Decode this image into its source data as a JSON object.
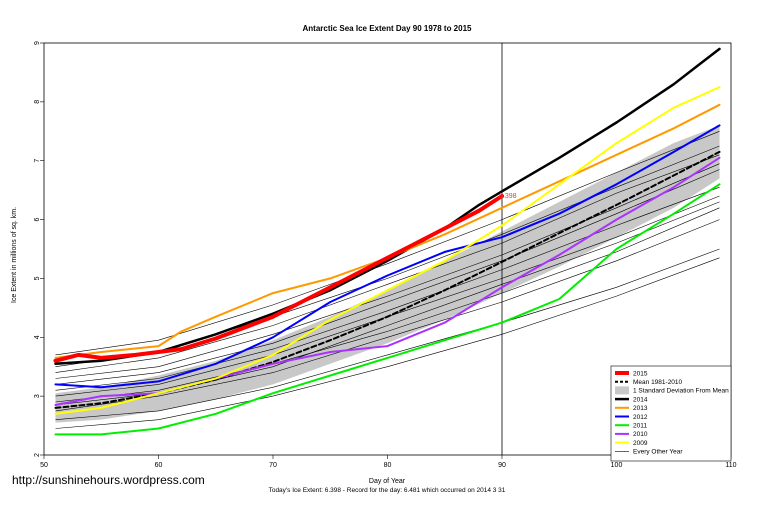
{
  "chart_data": {
    "type": "line",
    "title": "Antarctic Sea Ice Extent Day 90 1978 to 2015",
    "xlabel": "Day of Year",
    "ylabel": "Ice Extent in millions of sq. km.",
    "xlim": [
      50,
      110
    ],
    "ylim": [
      2,
      9
    ],
    "x_ticks": [
      "50",
      "60",
      "70",
      "80",
      "90",
      "100",
      "110"
    ],
    "y_ticks": [
      "2",
      "3",
      "4",
      "5",
      "6",
      "7",
      "8",
      "9"
    ],
    "current_day": 90,
    "annotation": {
      "text": "6.398",
      "x": 90,
      "y": 6.398,
      "color": "#ff3333"
    },
    "footer_line1": "Today's Ice Extent: 6.398  - Record for the day: 6.481 which occurred on 2014 3 31",
    "credit": "http://sunshinehours.wordpress.com",
    "std_band": {
      "x": [
        51,
        55,
        60,
        65,
        70,
        75,
        80,
        85,
        90,
        95,
        100,
        105,
        109
      ],
      "low": [
        2.55,
        2.6,
        2.75,
        2.95,
        3.2,
        3.55,
        3.9,
        4.3,
        4.75,
        5.2,
        5.7,
        6.2,
        6.7
      ],
      "high": [
        3.05,
        3.15,
        3.35,
        3.6,
        3.95,
        4.35,
        4.8,
        5.3,
        5.8,
        6.3,
        6.8,
        7.3,
        7.6
      ]
    },
    "other_years": [
      {
        "x": [
          51,
          60,
          70,
          80,
          90,
          100,
          109
        ],
        "values": [
          2.6,
          2.75,
          3.15,
          3.7,
          4.25,
          4.85,
          5.5
        ]
      },
      {
        "x": [
          51,
          60,
          70,
          80,
          90,
          100,
          109
        ],
        "values": [
          2.9,
          3.1,
          3.55,
          4.1,
          4.75,
          5.45,
          6.2
        ]
      },
      {
        "x": [
          51,
          60,
          70,
          80,
          90,
          100,
          109
        ],
        "values": [
          3.1,
          3.3,
          3.8,
          4.45,
          5.15,
          5.9,
          6.55
        ]
      },
      {
        "x": [
          51,
          60,
          70,
          80,
          90,
          100,
          109
        ],
        "values": [
          3.3,
          3.5,
          4.05,
          4.7,
          5.4,
          6.2,
          6.95
        ]
      },
      {
        "x": [
          51,
          60,
          70,
          80,
          90,
          100,
          109
        ],
        "values": [
          2.75,
          3.0,
          3.4,
          4.0,
          4.6,
          5.3,
          6.0
        ]
      },
      {
        "x": [
          51,
          60,
          70,
          80,
          90,
          100,
          109
        ],
        "values": [
          3.5,
          3.75,
          4.35,
          5.0,
          5.75,
          6.55,
          7.25
        ]
      },
      {
        "x": [
          51,
          60,
          70,
          80,
          90,
          100,
          109
        ],
        "values": [
          3.0,
          3.2,
          3.7,
          4.35,
          5.0,
          5.7,
          6.4
        ]
      },
      {
        "x": [
          51,
          60,
          70,
          80,
          90,
          100,
          109
        ],
        "values": [
          3.7,
          3.95,
          4.55,
          5.25,
          6.0,
          6.8,
          7.5
        ]
      },
      {
        "x": [
          51,
          60,
          70,
          80,
          90,
          100,
          109
        ],
        "values": [
          2.45,
          2.6,
          3.0,
          3.5,
          4.05,
          4.7,
          5.35
        ]
      },
      {
        "x": [
          51,
          60,
          70,
          80,
          90,
          100,
          109
        ],
        "values": [
          3.2,
          3.4,
          3.9,
          4.6,
          5.3,
          6.1,
          6.85
        ]
      },
      {
        "x": [
          51,
          60,
          70,
          80,
          90,
          100,
          109
        ],
        "values": [
          2.85,
          3.05,
          3.5,
          4.2,
          4.9,
          5.6,
          6.3
        ]
      },
      {
        "x": [
          51,
          60,
          70,
          80,
          90,
          100,
          109
        ],
        "values": [
          3.4,
          3.65,
          4.2,
          4.9,
          5.6,
          6.45,
          7.1
        ]
      }
    ],
    "series": [
      {
        "name": "Mean 1981-2010",
        "color": "#000000",
        "width": 2,
        "dash": "5,3",
        "x": [
          51,
          55,
          60,
          65,
          70,
          75,
          80,
          85,
          90,
          95,
          100,
          105,
          109
        ],
        "values": [
          2.8,
          2.88,
          3.05,
          3.28,
          3.58,
          3.95,
          4.35,
          4.8,
          5.28,
          5.77,
          6.25,
          6.75,
          7.15
        ]
      },
      {
        "name": "2014",
        "color": "#000000",
        "width": 2.5,
        "x": [
          51,
          55,
          60,
          65,
          70,
          75,
          80,
          85,
          88,
          90,
          95,
          100,
          105,
          107,
          109
        ],
        "values": [
          3.55,
          3.6,
          3.75,
          4.05,
          4.4,
          4.8,
          5.3,
          5.85,
          6.25,
          6.48,
          7.05,
          7.65,
          8.3,
          8.6,
          8.9
        ]
      },
      {
        "name": "2013",
        "color": "#ff9900",
        "width": 2,
        "x": [
          51,
          55,
          60,
          62,
          65,
          70,
          75,
          80,
          85,
          90,
          95,
          100,
          105,
          109
        ],
        "values": [
          3.65,
          3.75,
          3.85,
          4.1,
          4.35,
          4.75,
          5.0,
          5.35,
          5.75,
          6.2,
          6.65,
          7.1,
          7.55,
          7.95
        ]
      },
      {
        "name": "2012",
        "color": "#0000ff",
        "width": 2,
        "x": [
          51,
          55,
          60,
          65,
          70,
          75,
          80,
          85,
          90,
          95,
          100,
          105,
          109
        ],
        "values": [
          3.2,
          3.15,
          3.25,
          3.55,
          4.0,
          4.6,
          5.05,
          5.45,
          5.7,
          6.1,
          6.6,
          7.15,
          7.6
        ]
      },
      {
        "name": "2011",
        "color": "#00ee00",
        "width": 2,
        "x": [
          51,
          55,
          60,
          65,
          70,
          75,
          80,
          85,
          90,
          95,
          100,
          105,
          109
        ],
        "values": [
          2.35,
          2.35,
          2.45,
          2.7,
          3.05,
          3.35,
          3.65,
          3.95,
          4.25,
          4.65,
          5.5,
          6.1,
          6.6
        ]
      },
      {
        "name": "2010",
        "color": "#aa33ff",
        "width": 2,
        "x": [
          51,
          55,
          60,
          65,
          70,
          75,
          80,
          85,
          90,
          95,
          100,
          105,
          109
        ],
        "values": [
          2.85,
          3.0,
          3.05,
          3.3,
          3.55,
          3.75,
          3.85,
          4.25,
          4.85,
          5.4,
          6.0,
          6.55,
          7.05
        ]
      },
      {
        "name": "2009",
        "color": "#ffff00",
        "width": 2,
        "x": [
          51,
          55,
          60,
          65,
          70,
          75,
          80,
          85,
          90,
          95,
          100,
          105,
          109
        ],
        "values": [
          2.7,
          2.8,
          3.05,
          3.3,
          3.7,
          4.3,
          4.8,
          5.3,
          5.9,
          6.6,
          7.3,
          7.9,
          8.25
        ]
      },
      {
        "name": "2015",
        "color": "#ff0000",
        "width": 4,
        "x": [
          51,
          53,
          55,
          58,
          60,
          62,
          65,
          68,
          70,
          72,
          75,
          78,
          80,
          82,
          85,
          88,
          90
        ],
        "values": [
          3.6,
          3.7,
          3.65,
          3.7,
          3.75,
          3.8,
          3.98,
          4.2,
          4.35,
          4.55,
          4.85,
          5.15,
          5.35,
          5.55,
          5.85,
          6.15,
          6.4
        ]
      }
    ],
    "legend": [
      {
        "label": "2015",
        "color": "#ff0000",
        "style": "line",
        "width": 4
      },
      {
        "label": "Mean 1981-2010",
        "color": "#000000",
        "style": "dashed",
        "width": 2
      },
      {
        "label": "1 Standard Deviation From Mean",
        "color": "#c8c8c8",
        "style": "box",
        "width": 8
      },
      {
        "label": "2014",
        "color": "#000000",
        "style": "line",
        "width": 2.5
      },
      {
        "label": "2013",
        "color": "#ff9900",
        "style": "line",
        "width": 2
      },
      {
        "label": "2012",
        "color": "#0000ff",
        "style": "line",
        "width": 2
      },
      {
        "label": "2011",
        "color": "#00ee00",
        "style": "line",
        "width": 2
      },
      {
        "label": "2010",
        "color": "#aa33ff",
        "style": "line",
        "width": 2
      },
      {
        "label": "2009",
        "color": "#ffff00",
        "style": "line",
        "width": 2
      },
      {
        "label": "Every Other Year",
        "color": "#000000",
        "style": "line",
        "width": 0.6
      }
    ],
    "legend_position": "bottom-right"
  }
}
